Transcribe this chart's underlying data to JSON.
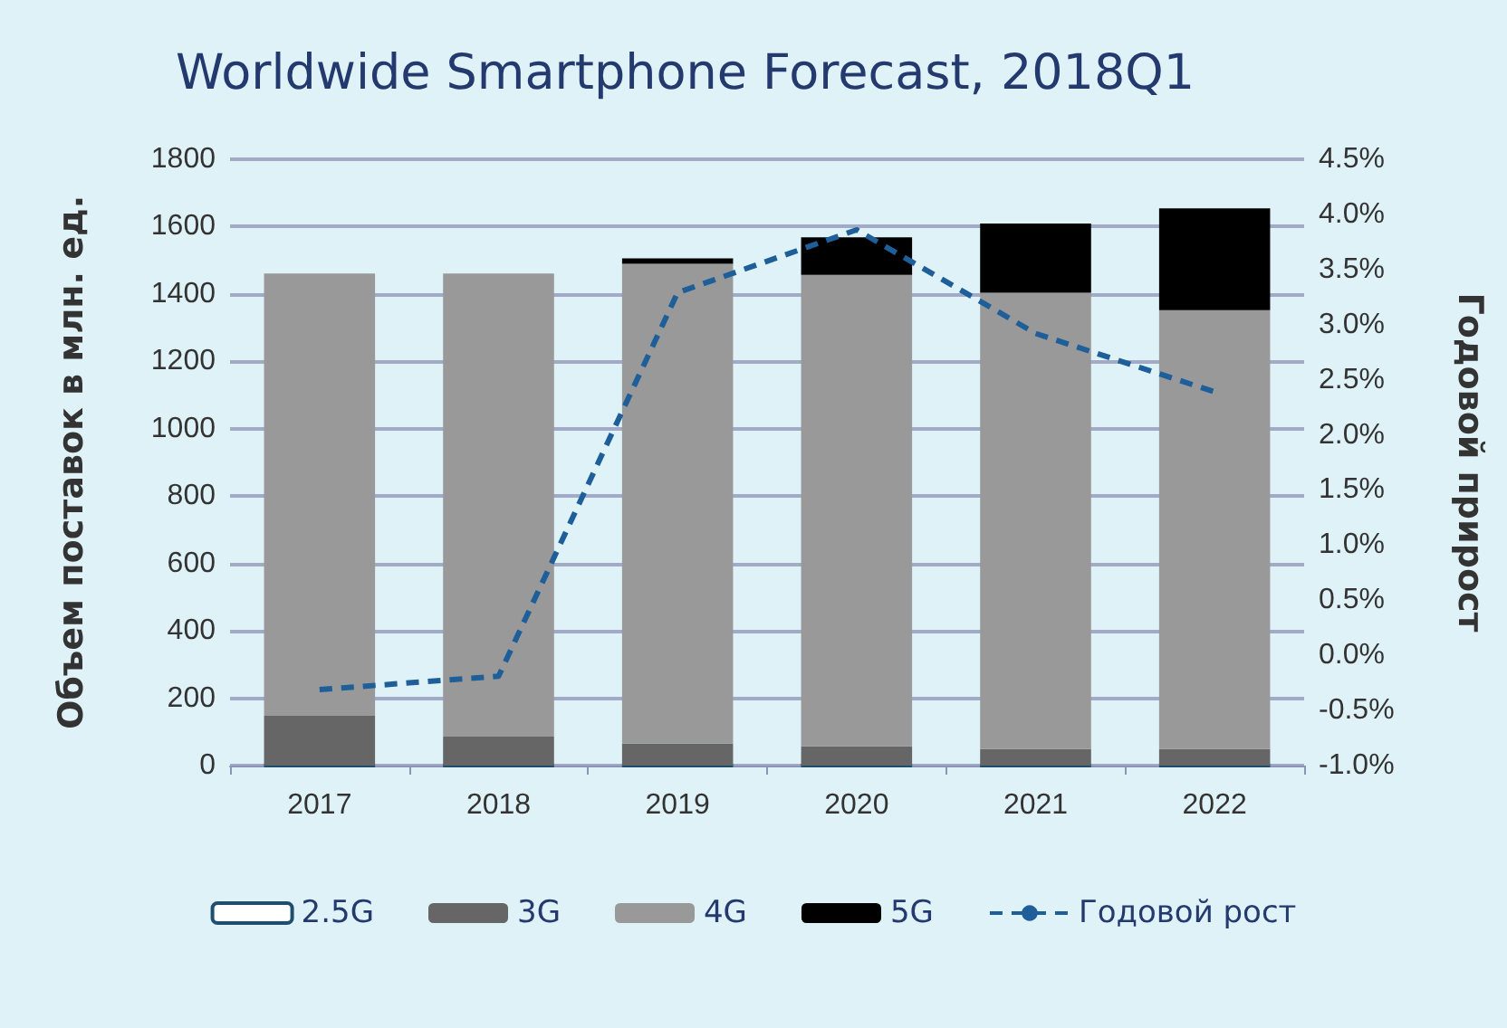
{
  "chart_data": {
    "type": "bar",
    "title": "Worldwide Smartphone Forecast, 2018Q1",
    "ylabel": "Объем поставок в млн. ед.",
    "y2label": "Годовой прирост",
    "categories": [
      "2017",
      "2018",
      "2019",
      "2020",
      "2021",
      "2022"
    ],
    "stacked": true,
    "series": [
      {
        "name": "2.5G",
        "color": "#ffffff",
        "values": [
          0,
          0,
          0,
          0,
          0,
          0
        ]
      },
      {
        "name": "3G",
        "color": "#666666",
        "values": [
          148,
          86,
          66,
          57,
          49,
          49
        ]
      },
      {
        "name": "4G",
        "color": "#999999",
        "values": [
          1313,
          1375,
          1424,
          1400,
          1355,
          1303
        ]
      },
      {
        "name": "5G",
        "color": "#000000",
        "values": [
          0,
          0,
          16,
          111,
          205,
          302
        ]
      },
      {
        "name": "Годовой рост",
        "type": "line",
        "axis": "y2",
        "color": "#1f5f99",
        "line_style": "dashed",
        "marker": "none",
        "values": [
          -0.31,
          -0.19,
          3.29,
          3.86,
          2.92,
          2.39
        ]
      }
    ],
    "ylim": [
      0,
      1800
    ],
    "yticks": [
      0,
      200,
      400,
      600,
      800,
      1000,
      1200,
      1400,
      1600,
      1800
    ],
    "y2lim": [
      -1,
      4.5
    ],
    "y2ticks": [
      {
        "value": -1,
        "label": "-1.0%"
      },
      {
        "value": -0.5,
        "label": "-0.5%"
      },
      {
        "value": 0,
        "label": "0.0%"
      },
      {
        "value": 0.5,
        "label": "0.5%"
      },
      {
        "value": 1,
        "label": "1.0%"
      },
      {
        "value": 1.5,
        "label": "1.5%"
      },
      {
        "value": 2,
        "label": "2.0%"
      },
      {
        "value": 2.5,
        "label": "2.5%"
      },
      {
        "value": 3,
        "label": "3.0%"
      },
      {
        "value": 3.5,
        "label": "3.5%"
      },
      {
        "value": 4,
        "label": "4.0%"
      },
      {
        "value": 4.5,
        "label": "4.5%"
      }
    ],
    "grid": "y",
    "legend": "bottom"
  }
}
